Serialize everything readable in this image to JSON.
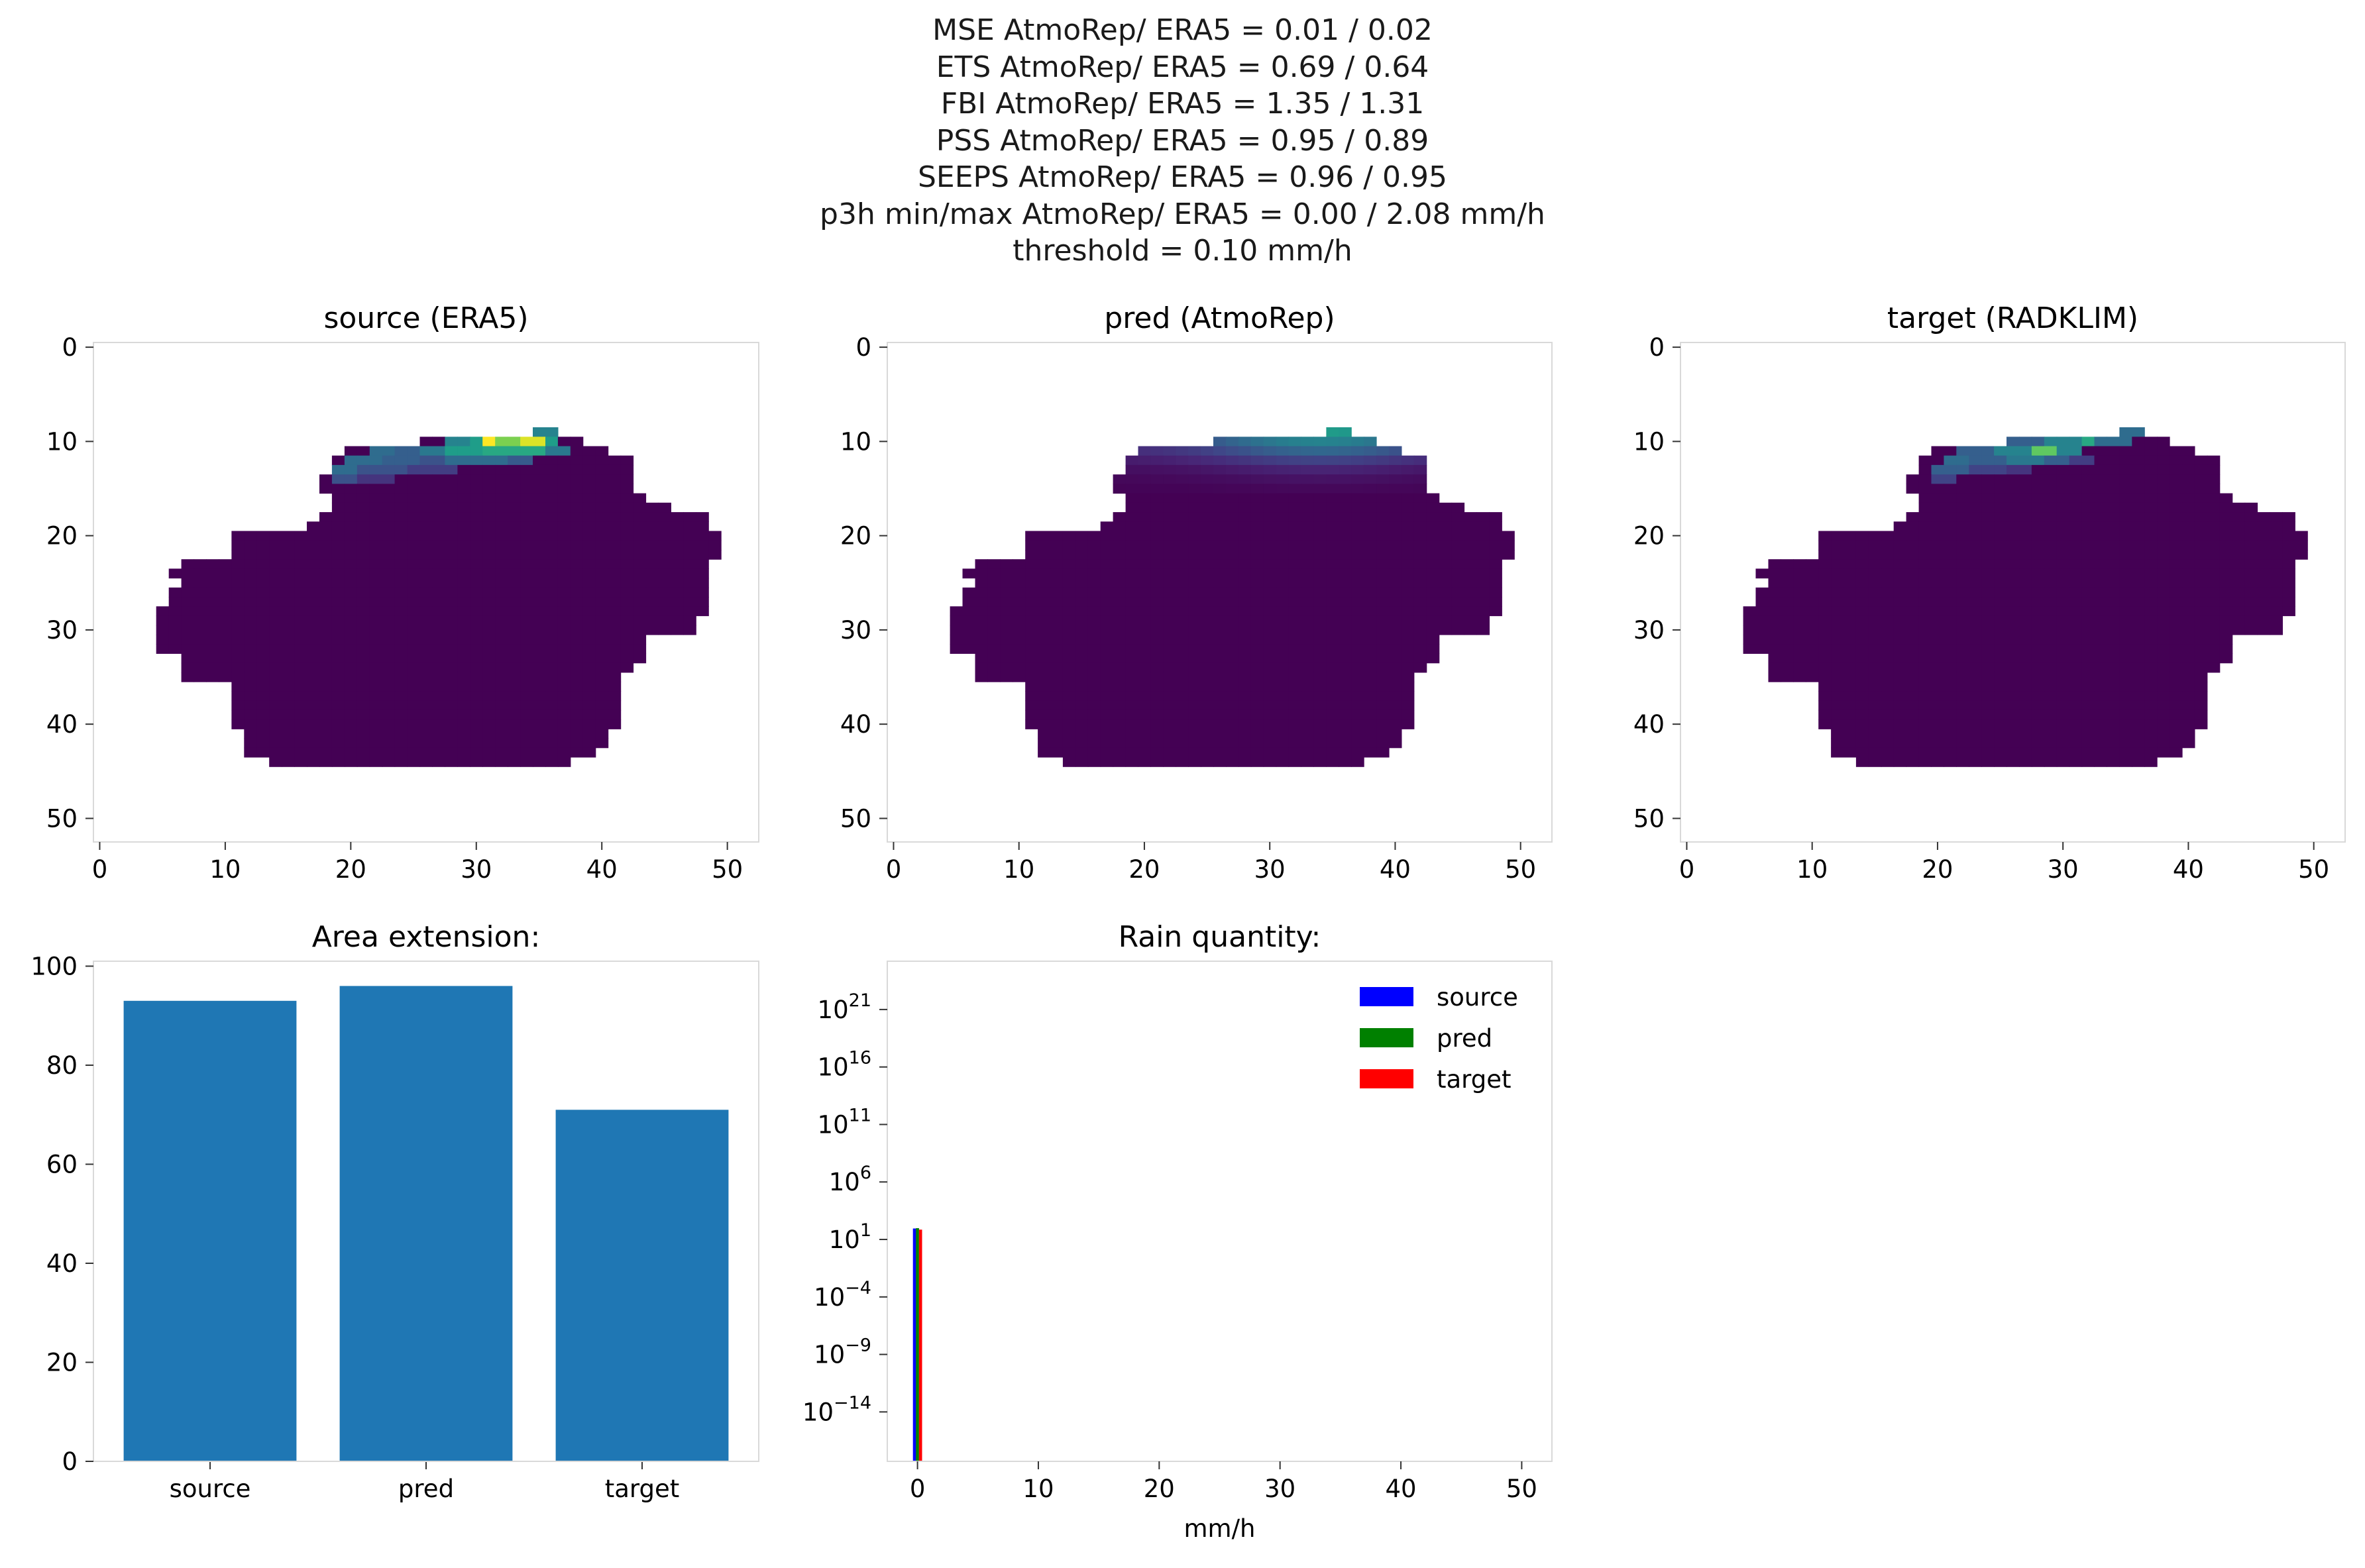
{
  "figure": {
    "suptitle_lines": [
      "MSE AtmoRep/ ERA5 = 0.01 / 0.02",
      "ETS AtmoRep/ ERA5 = 0.69 / 0.64",
      "FBI AtmoRep/ ERA5 = 1.35 / 1.31",
      "PSS AtmoRep/ ERA5 = 0.95 / 0.89",
      "SEEPS AtmoRep/ ERA5 = 0.96 / 0.95",
      "p3h min/max AtmoRep/ ERA5 = 0.00 / 2.08 mm/h",
      "threshold = 0.10 mm/h"
    ]
  },
  "colors": {
    "viridis_low": "#440154",
    "bar_blue": "#1f77b4",
    "legend_source": "#0000ff",
    "legend_pred": "#008000",
    "legend_target": "#ff0000",
    "axes_spine": "#d9d9d9"
  },
  "chart_data": [
    {
      "type": "heatmap",
      "title": "source (ERA5)",
      "xticks": [
        "0",
        "10",
        "20",
        "30",
        "40",
        "50"
      ],
      "yticks": [
        "0",
        "10",
        "20",
        "30",
        "40",
        "50"
      ],
      "xlim": [
        0,
        53
      ],
      "ylim": [
        53,
        0
      ],
      "colormap": "viridis",
      "rain_pattern": "sharp"
    },
    {
      "type": "heatmap",
      "title": "pred (AtmoRep)",
      "xticks": [
        "0",
        "10",
        "20",
        "30",
        "40",
        "50"
      ],
      "yticks": [
        "0",
        "10",
        "20",
        "30",
        "40",
        "50"
      ],
      "xlim": [
        0,
        53
      ],
      "ylim": [
        53,
        0
      ],
      "colormap": "viridis",
      "rain_pattern": "smooth"
    },
    {
      "type": "heatmap",
      "title": "target (RADKLIM)",
      "xticks": [
        "0",
        "10",
        "20",
        "30",
        "40",
        "50"
      ],
      "yticks": [
        "0",
        "10",
        "20",
        "30",
        "40",
        "50"
      ],
      "xlim": [
        0,
        53
      ],
      "ylim": [
        53,
        0
      ],
      "colormap": "viridis",
      "rain_pattern": "patchy"
    },
    {
      "type": "bar",
      "title": "Area extension:",
      "categories": [
        "source",
        "pred",
        "target"
      ],
      "values": [
        93,
        96,
        71
      ],
      "yticks": [
        "0",
        "20",
        "40",
        "60",
        "80",
        "100"
      ],
      "ylim": [
        0,
        101
      ]
    },
    {
      "type": "bar",
      "title": "Rain quantity:",
      "xlabel": "mm/h",
      "xticks": [
        "0",
        "10",
        "20",
        "30",
        "40",
        "50"
      ],
      "xlim": [
        -2.5,
        52.5
      ],
      "yscale": "log",
      "yticks": [
        "10^21",
        "10^16",
        "10^11",
        "10^6",
        "10^1",
        "10^−4",
        "10^−9",
        "10^−14"
      ],
      "ylim_exp": [
        -18.3,
        25.2
      ],
      "legend": {
        "placement": "upper-right",
        "entries": [
          "source",
          "pred",
          "target"
        ]
      },
      "series": [
        {
          "name": "source",
          "bins": [
            0.25
          ],
          "values": [
            90
          ]
        },
        {
          "name": "pred",
          "bins": [
            0.25
          ],
          "values": [
            96
          ]
        },
        {
          "name": "target",
          "bins": [
            0.25
          ],
          "values": [
            71
          ]
        }
      ]
    }
  ]
}
